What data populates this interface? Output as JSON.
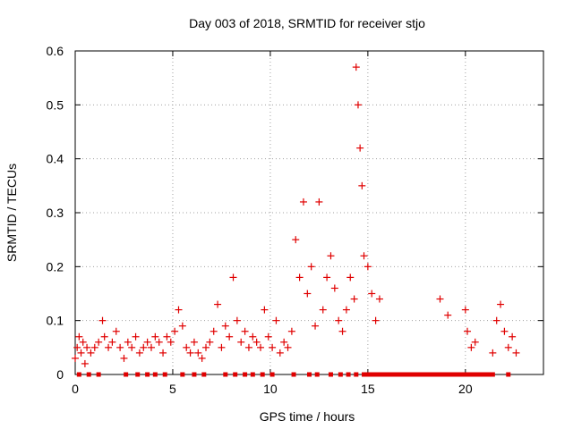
{
  "chart_data": {
    "type": "scatter",
    "title": "Day 003 of 2018, SRMTID for receiver stjo",
    "xlabel": "GPS time / hours",
    "ylabel": "SRMTID / TECUs",
    "xlim": [
      0,
      24
    ],
    "ylim": [
      0,
      0.6
    ],
    "xticks": [
      0,
      5,
      10,
      15,
      20
    ],
    "yticks": [
      0,
      0.1,
      0.2,
      0.3,
      0.4,
      0.5,
      0.6
    ],
    "grid": true,
    "marker": "+",
    "series_color": "#e00000",
    "series": [
      {
        "name": "SRMTID",
        "x": [
          0.0,
          0.1,
          0.2,
          0.3,
          0.4,
          0.5,
          0.6,
          0.8,
          1.0,
          1.2,
          1.4,
          1.5,
          1.7,
          1.9,
          2.1,
          2.3,
          2.5,
          2.7,
          2.9,
          3.1,
          3.3,
          3.5,
          3.7,
          3.9,
          4.1,
          4.3,
          4.5,
          4.7,
          4.9,
          5.1,
          5.3,
          5.5,
          5.7,
          5.9,
          6.1,
          6.3,
          6.5,
          6.7,
          6.9,
          7.1,
          7.3,
          7.5,
          7.7,
          7.9,
          8.1,
          8.3,
          8.5,
          8.7,
          8.9,
          9.1,
          9.3,
          9.5,
          9.7,
          9.9,
          10.1,
          10.3,
          10.5,
          10.7,
          10.9,
          11.1,
          11.3,
          11.5,
          11.7,
          11.9,
          12.1,
          12.3,
          12.5,
          12.7,
          12.9,
          13.1,
          13.3,
          13.5,
          13.7,
          13.9,
          14.1,
          14.3,
          14.4,
          14.5,
          14.6,
          14.7,
          14.8,
          15.0,
          15.2,
          15.4,
          15.6,
          18.7,
          19.1,
          20.0,
          20.1,
          20.3,
          20.5,
          21.4,
          21.6,
          21.8,
          22.0,
          22.2,
          22.4,
          22.6
        ],
        "y": [
          0.03,
          0.05,
          0.07,
          0.04,
          0.06,
          0.02,
          0.05,
          0.04,
          0.05,
          0.06,
          0.1,
          0.07,
          0.05,
          0.06,
          0.08,
          0.05,
          0.03,
          0.06,
          0.05,
          0.07,
          0.04,
          0.05,
          0.06,
          0.05,
          0.07,
          0.06,
          0.04,
          0.07,
          0.06,
          0.08,
          0.12,
          0.09,
          0.05,
          0.04,
          0.06,
          0.04,
          0.03,
          0.05,
          0.06,
          0.08,
          0.13,
          0.05,
          0.09,
          0.07,
          0.18,
          0.1,
          0.06,
          0.08,
          0.05,
          0.07,
          0.06,
          0.05,
          0.12,
          0.07,
          0.05,
          0.1,
          0.04,
          0.06,
          0.05,
          0.08,
          0.25,
          0.18,
          0.32,
          0.15,
          0.2,
          0.09,
          0.32,
          0.12,
          0.18,
          0.22,
          0.16,
          0.1,
          0.08,
          0.12,
          0.18,
          0.14,
          0.57,
          0.5,
          0.42,
          0.35,
          0.22,
          0.2,
          0.15,
          0.1,
          0.14,
          0.14,
          0.11,
          0.12,
          0.08,
          0.05,
          0.06,
          0.04,
          0.1,
          0.13,
          0.08,
          0.05,
          0.07,
          0.04
        ],
        "gap_markers_x": [
          0.2,
          0.7,
          1.2,
          2.6,
          3.2,
          3.7,
          4.1,
          4.6,
          5.5,
          6.1,
          6.6,
          7.7,
          8.2,
          8.7,
          9.1,
          9.6,
          10.1,
          11.2,
          12.0,
          12.4,
          13.1,
          13.6,
          14.0,
          14.4,
          14.8,
          15.0,
          15.2,
          15.4,
          15.6,
          15.8,
          16.0,
          16.2,
          16.4,
          16.6,
          16.8,
          17.0,
          17.2,
          17.4,
          17.6,
          17.8,
          18.0,
          18.2,
          18.4,
          18.6,
          18.8,
          19.0,
          19.2,
          19.4,
          19.6,
          19.8,
          20.0,
          20.2,
          20.4,
          20.6,
          20.8,
          21.0,
          21.2,
          21.4,
          22.2
        ],
        "gap_markers_y": 0
      }
    ]
  }
}
